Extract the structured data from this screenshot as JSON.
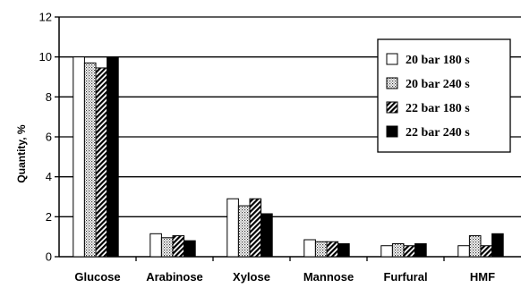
{
  "chart_data": {
    "type": "bar",
    "ylabel": "Quantity, %",
    "ylim": [
      0,
      12
    ],
    "yticks": [
      0,
      2,
      4,
      6,
      8,
      10,
      12
    ],
    "grid": true,
    "legend_position": "top-right",
    "categories": [
      "Glucose",
      "Arabinose",
      "Xylose",
      "Mannose",
      "Furfural",
      "HMF"
    ],
    "series": [
      {
        "name": "20 bar 180 s",
        "fill": "white",
        "values": [
          10.0,
          1.15,
          2.9,
          0.85,
          0.55,
          0.55
        ]
      },
      {
        "name": "20 bar 240 s",
        "fill": "dots",
        "values": [
          9.7,
          0.95,
          2.55,
          0.75,
          0.65,
          1.05
        ]
      },
      {
        "name": "22 bar 180 s",
        "fill": "hatch",
        "values": [
          9.45,
          1.05,
          2.9,
          0.75,
          0.55,
          0.55
        ]
      },
      {
        "name": "22 bar 240 s",
        "fill": "black",
        "values": [
          10.0,
          0.8,
          2.15,
          0.65,
          0.65,
          1.15
        ]
      }
    ]
  }
}
